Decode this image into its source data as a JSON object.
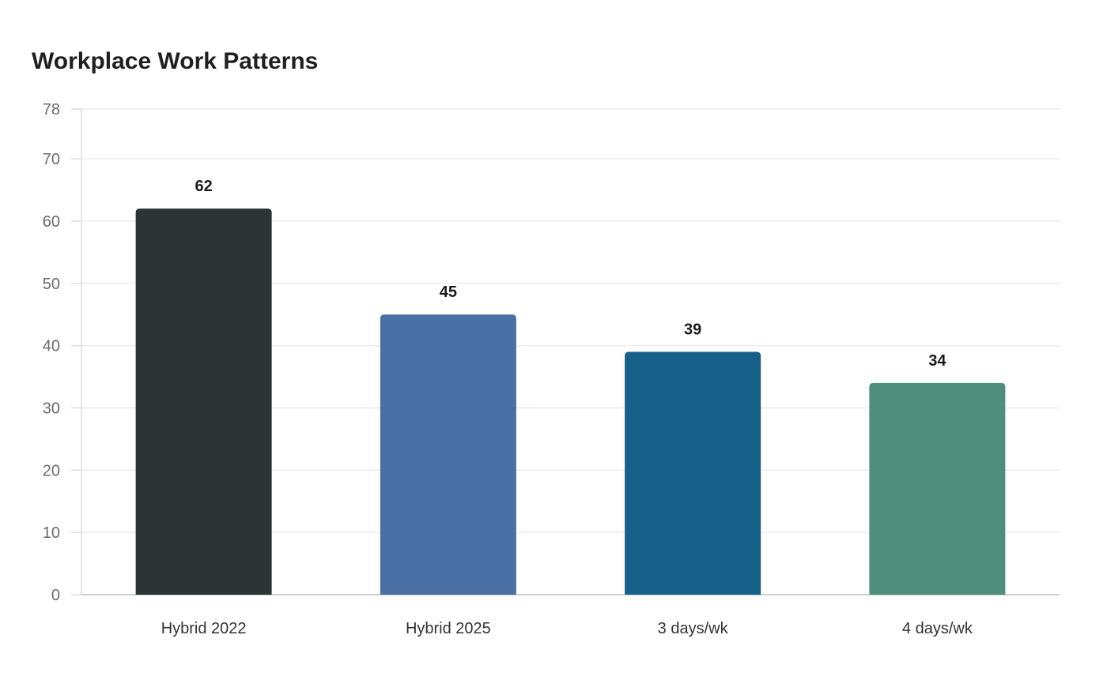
{
  "chart_data": {
    "type": "bar",
    "title": "Workplace Work Patterns",
    "xlabel": "",
    "ylabel": "",
    "categories": [
      "Hybrid 2022",
      "Hybrid 2025",
      "3 days/wk",
      "4 days/wk"
    ],
    "values": [
      62,
      45,
      39,
      34
    ],
    "value_labels": [
      "62",
      "45",
      "39",
      "34"
    ],
    "colors": [
      "#2d3436",
      "#4a6fa5",
      "#17608a",
      "#4e8e7a"
    ],
    "ylim": [
      0,
      78
    ],
    "yticks": [
      0,
      10,
      20,
      30,
      40,
      50,
      60,
      70,
      78
    ],
    "ytick_labels": [
      "0",
      "10",
      "20",
      "30",
      "40",
      "50",
      "60",
      "70",
      "78"
    ],
    "grid": true,
    "legend": "none"
  }
}
